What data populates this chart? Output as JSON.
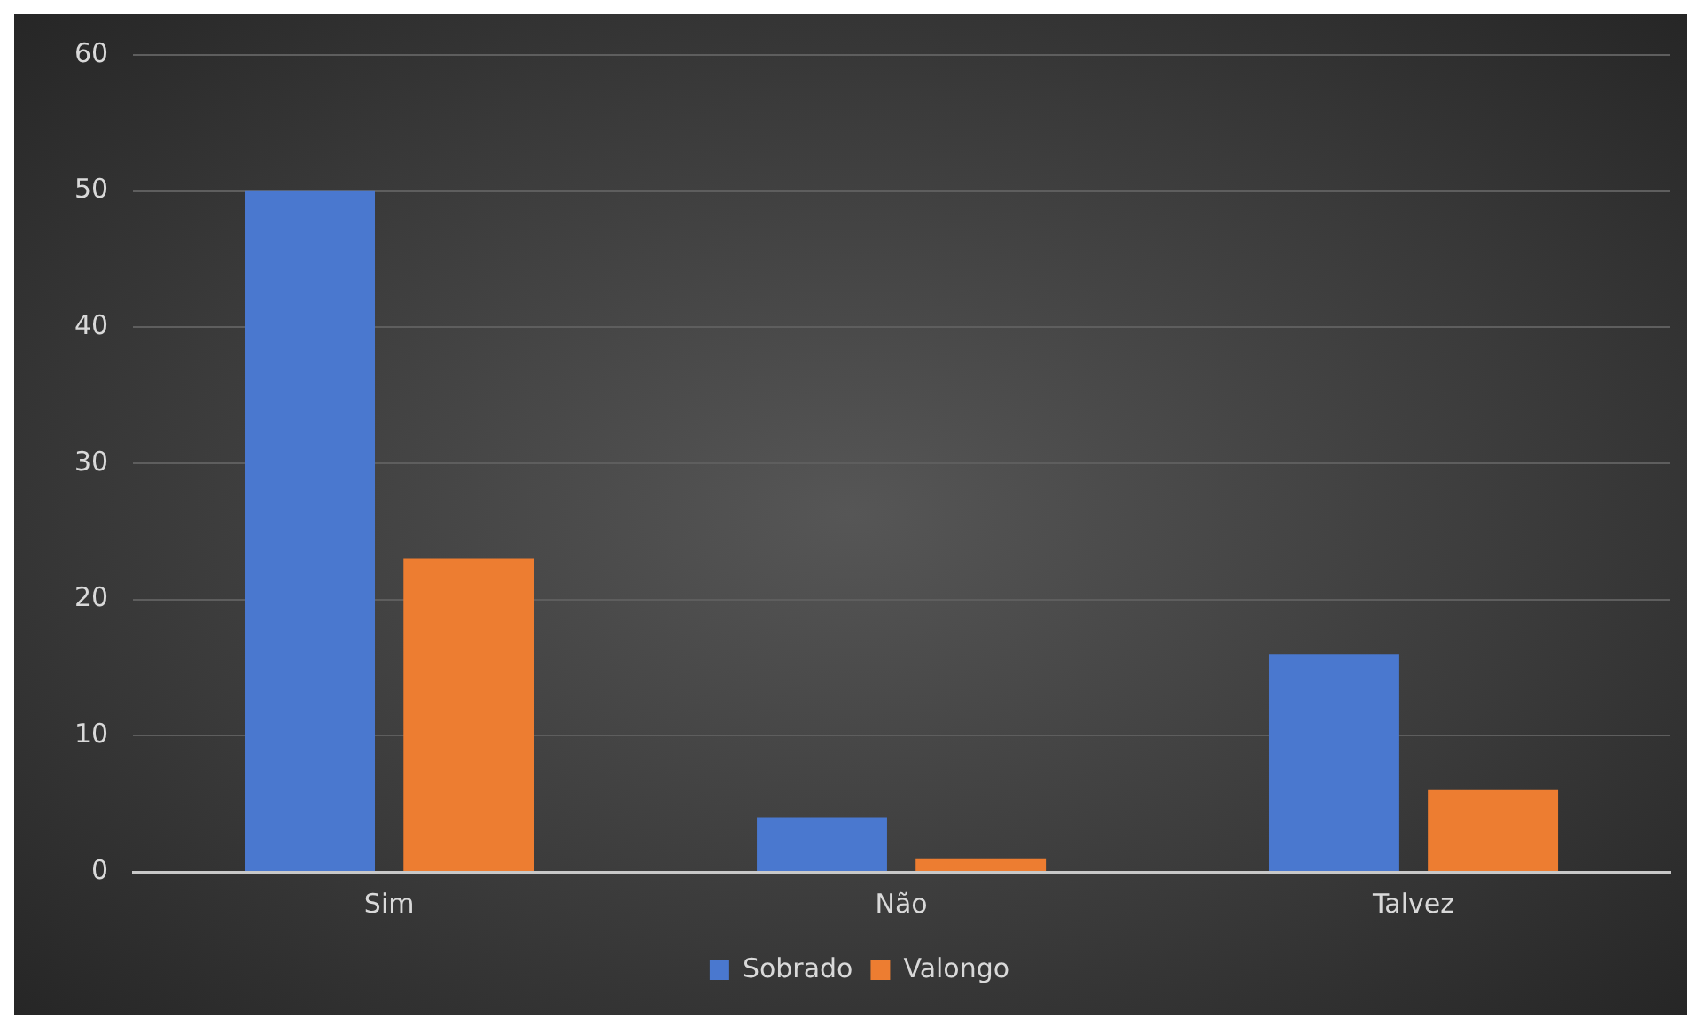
{
  "chart_data": {
    "type": "bar",
    "categories": [
      "Sim",
      "Não",
      "Talvez"
    ],
    "series": [
      {
        "name": "Sobrado",
        "color": "#4a78cf",
        "values": [
          50,
          4,
          16
        ]
      },
      {
        "name": "Valongo",
        "color": "#ed7d31",
        "values": [
          23,
          1,
          6
        ]
      }
    ],
    "ylim": [
      0,
      60
    ],
    "yticks": [
      0,
      10,
      20,
      30,
      40,
      50,
      60
    ],
    "grid": "y",
    "legend": "bottom"
  }
}
